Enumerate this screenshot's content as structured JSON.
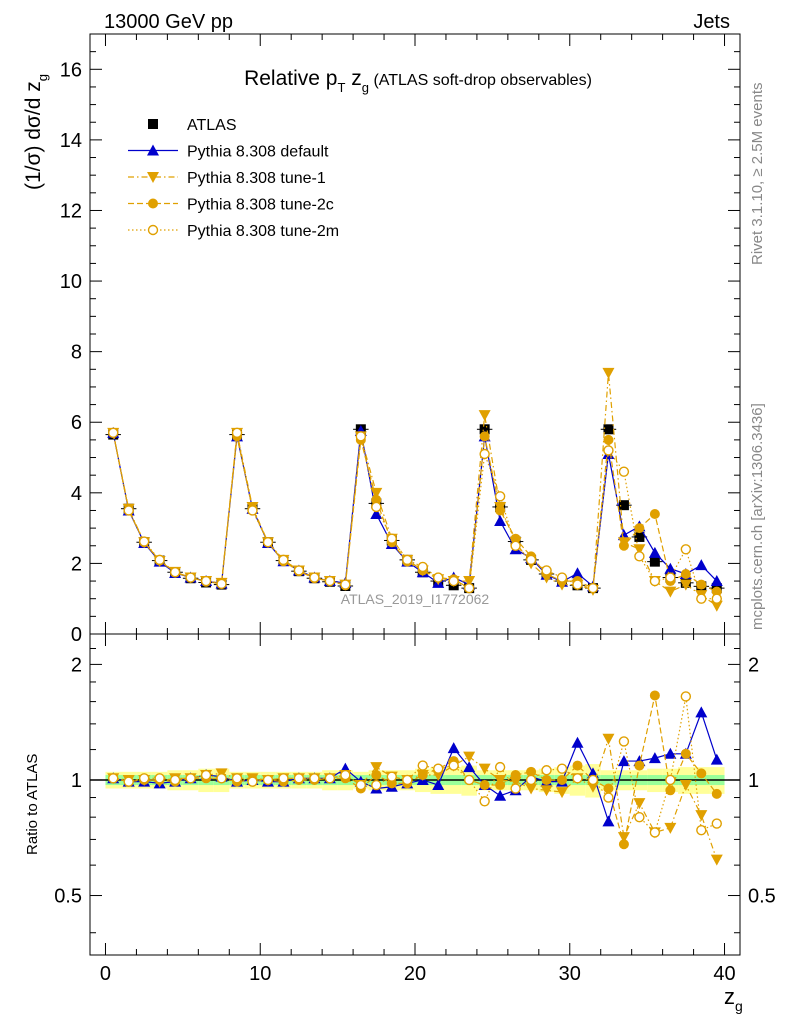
{
  "header": {
    "energy": "13000 GeV pp",
    "process": "Jets"
  },
  "side_labels": {
    "rivet": "Rivet 3.1.10, ≥ 2.5M events",
    "source": "mcplots.cern.ch [arXiv:1306.3436]"
  },
  "watermark": "ATLAS_2019_I1772062",
  "title": {
    "prefix": "Relative p",
    "pt_sub": "T",
    "var": " z",
    "var_sub": "g",
    "suffix": " (ATLAS soft-drop observables)"
  },
  "colors": {
    "atlas": "#000000",
    "default": "#0000cc",
    "tune": "#e0a000",
    "band_inner": "#99ff99",
    "band_outer": "#ffff99"
  },
  "chart_data": [
    {
      "id": "main",
      "type": "scatter",
      "ylabel": "(1/σ) dσ/d z",
      "ylabel_sub": "g",
      "xlim": [
        -1,
        41
      ],
      "ylim": [
        0,
        17
      ],
      "y_ticks": [
        0,
        2,
        4,
        6,
        8,
        10,
        12,
        14,
        16
      ],
      "legend_position": "top-left",
      "x": [
        0.5,
        1.5,
        2.5,
        3.5,
        4.5,
        5.5,
        6.5,
        7.5,
        8.5,
        9.5,
        10.5,
        11.5,
        12.5,
        13.5,
        14.5,
        15.5,
        16.5,
        17.5,
        18.5,
        19.5,
        20.5,
        21.5,
        22.5,
        23.5,
        24.5,
        25.5,
        26.5,
        27.5,
        28.5,
        29.5,
        30.5,
        31.5,
        32.5,
        33.5,
        34.5,
        35.5,
        36.5,
        37.5,
        38.5,
        39.5
      ],
      "series": [
        {
          "name": "ATLAS",
          "key": "atlas",
          "marker": "square",
          "values": [
            5.65,
            3.55,
            2.6,
            2.08,
            1.75,
            1.58,
            1.46,
            1.4,
            5.65,
            3.55,
            2.6,
            2.08,
            1.78,
            1.58,
            1.48,
            1.36,
            5.8,
            3.7,
            2.65,
            2.1,
            1.75,
            1.5,
            1.38,
            1.3,
            5.8,
            3.6,
            2.62,
            2.1,
            1.7,
            1.5,
            1.38,
            1.3,
            5.8,
            3.65,
            2.75,
            2.05,
            1.6,
            1.45,
            1.35,
            1.3
          ]
        },
        {
          "name": "Pythia 8.308 default",
          "key": "default",
          "marker": "triangle-up",
          "values": [
            5.7,
            3.5,
            2.58,
            2.05,
            1.73,
            1.6,
            1.5,
            1.43,
            5.6,
            3.55,
            2.58,
            2.06,
            1.8,
            1.6,
            1.5,
            1.45,
            5.75,
            3.4,
            2.55,
            2.05,
            1.75,
            1.45,
            1.6,
            1.4,
            5.6,
            3.2,
            2.4,
            2.15,
            1.68,
            1.48,
            1.72,
            1.35,
            5.1,
            2.8,
            3.05,
            2.3,
            1.85,
            1.7,
            1.95,
            1.5
          ]
        },
        {
          "name": "Pythia 8.308 tune-1",
          "key": "tune1",
          "marker": "triangle-down",
          "values": [
            5.7,
            3.55,
            2.6,
            2.07,
            1.76,
            1.6,
            1.5,
            1.45,
            5.7,
            3.6,
            2.6,
            2.1,
            1.8,
            1.6,
            1.5,
            1.4,
            5.6,
            4.0,
            2.7,
            2.1,
            1.8,
            1.55,
            1.5,
            1.5,
            6.2,
            3.6,
            2.6,
            2.0,
            1.6,
            1.4,
            1.4,
            1.25,
            7.4,
            2.6,
            2.4,
            1.5,
            1.2,
            1.4,
            1.1,
            0.8
          ]
        },
        {
          "name": "Pythia 8.308 tune-2c",
          "key": "tune2c",
          "marker": "circle",
          "values": [
            5.7,
            3.5,
            2.6,
            2.08,
            1.74,
            1.6,
            1.48,
            1.42,
            5.6,
            3.55,
            2.6,
            2.06,
            1.78,
            1.58,
            1.5,
            1.38,
            5.5,
            3.8,
            2.6,
            2.05,
            1.8,
            1.6,
            1.55,
            1.3,
            5.6,
            3.5,
            2.7,
            2.2,
            1.7,
            1.5,
            1.5,
            1.3,
            5.5,
            2.5,
            3.0,
            3.4,
            1.5,
            1.7,
            1.4,
            1.2
          ]
        },
        {
          "name": "Pythia 8.308 tune-2m",
          "key": "tune2m",
          "marker": "open-circle",
          "values": [
            5.7,
            3.5,
            2.62,
            2.1,
            1.75,
            1.6,
            1.5,
            1.42,
            5.7,
            3.5,
            2.6,
            2.1,
            1.8,
            1.6,
            1.5,
            1.4,
            5.6,
            3.6,
            2.7,
            2.1,
            1.9,
            1.6,
            1.5,
            1.3,
            5.1,
            3.9,
            2.5,
            2.1,
            1.8,
            1.6,
            1.4,
            1.3,
            5.2,
            4.6,
            2.2,
            1.5,
            1.6,
            2.4,
            1.0,
            1.0
          ]
        }
      ]
    },
    {
      "id": "ratio",
      "type": "scatter",
      "ylabel": "Ratio to ATLAS",
      "xlabel": "z",
      "xlabel_sub": "g",
      "log_y": true,
      "xlim": [
        -1,
        41
      ],
      "ylim": [
        0.35,
        2.4
      ],
      "x_ticks": [
        0,
        10,
        20,
        30,
        40
      ],
      "y_ticks": [
        0.5,
        1,
        2
      ],
      "x": [
        0.5,
        1.5,
        2.5,
        3.5,
        4.5,
        5.5,
        6.5,
        7.5,
        8.5,
        9.5,
        10.5,
        11.5,
        12.5,
        13.5,
        14.5,
        15.5,
        16.5,
        17.5,
        18.5,
        19.5,
        20.5,
        21.5,
        22.5,
        23.5,
        24.5,
        25.5,
        26.5,
        27.5,
        28.5,
        29.5,
        30.5,
        31.5,
        32.5,
        33.5,
        34.5,
        35.5,
        36.5,
        37.5,
        38.5,
        39.5
      ],
      "band_inner": [
        0.03,
        0.03,
        0.03,
        0.03,
        0.03,
        0.03,
        0.03,
        0.03,
        0.03,
        0.03,
        0.03,
        0.03,
        0.03,
        0.03,
        0.03,
        0.03,
        0.03,
        0.03,
        0.03,
        0.03,
        0.03,
        0.03,
        0.03,
        0.03,
        0.03,
        0.03,
        0.03,
        0.03,
        0.03,
        0.03,
        0.03,
        0.03,
        0.03,
        0.03,
        0.03,
        0.03,
        0.03,
        0.03,
        0.03,
        0.03
      ],
      "band_outer": [
        0.05,
        0.05,
        0.05,
        0.05,
        0.06,
        0.06,
        0.07,
        0.07,
        0.05,
        0.05,
        0.05,
        0.05,
        0.05,
        0.05,
        0.06,
        0.06,
        0.05,
        0.06,
        0.06,
        0.06,
        0.07,
        0.08,
        0.08,
        0.09,
        0.06,
        0.06,
        0.06,
        0.06,
        0.07,
        0.08,
        0.09,
        0.1,
        0.06,
        0.06,
        0.06,
        0.07,
        0.07,
        0.08,
        0.08,
        0.08
      ],
      "series": [
        {
          "name": "Pythia 8.308 default",
          "key": "default",
          "marker": "triangle-up",
          "values": [
            1.01,
            0.99,
            0.99,
            0.98,
            0.99,
            1.01,
            1.03,
            1.02,
            0.99,
            1.0,
            0.99,
            0.99,
            1.01,
            1.01,
            1.01,
            1.07,
            0.99,
            0.95,
            0.96,
            0.98,
            1.0,
            0.97,
            1.21,
            1.08,
            0.97,
            0.91,
            0.94,
            1.02,
            0.99,
            0.99,
            1.25,
            1.04,
            0.78,
            1.12,
            1.12,
            1.14,
            1.17,
            1.17,
            1.5,
            1.13
          ]
        },
        {
          "name": "Pythia 8.308 tune-1",
          "key": "tune1",
          "marker": "triangle-down",
          "values": [
            1.01,
            1.0,
            1.0,
            0.99,
            1.01,
            1.01,
            1.03,
            1.04,
            1.01,
            1.01,
            1.0,
            1.01,
            1.01,
            1.01,
            1.01,
            1.03,
            0.97,
            1.08,
            1.02,
            1.0,
            1.03,
            1.03,
            1.09,
            1.15,
            1.07,
            1.0,
            0.99,
            0.95,
            0.94,
            0.93,
            1.01,
            0.96,
            1.28,
            0.71,
            0.87,
            0.73,
            0.75,
            0.97,
            0.81,
            0.62
          ]
        },
        {
          "name": "Pythia 8.308 tune-2c",
          "key": "tune2c",
          "marker": "circle",
          "values": [
            1.01,
            0.99,
            1.0,
            1.0,
            0.99,
            1.01,
            1.01,
            1.01,
            0.99,
            1.0,
            1.0,
            0.99,
            1.0,
            1.0,
            1.01,
            1.01,
            0.95,
            1.03,
            0.98,
            0.98,
            1.03,
            1.07,
            1.12,
            1.0,
            0.97,
            0.97,
            1.03,
            1.05,
            1.0,
            1.0,
            1.09,
            1.0,
            0.95,
            0.68,
            1.09,
            1.66,
            0.94,
            1.17,
            1.04,
            0.92
          ]
        },
        {
          "name": "Pythia 8.308 tune-2m",
          "key": "tune2m",
          "marker": "open-circle",
          "values": [
            1.01,
            0.99,
            1.01,
            1.01,
            1.0,
            1.01,
            1.03,
            1.01,
            1.01,
            0.99,
            1.0,
            1.01,
            1.01,
            1.01,
            1.01,
            1.03,
            0.97,
            0.97,
            1.02,
            1.0,
            1.09,
            1.07,
            1.09,
            1.0,
            0.88,
            1.08,
            0.95,
            1.0,
            1.06,
            1.07,
            1.01,
            1.0,
            0.9,
            1.26,
            0.8,
            0.73,
            1.0,
            1.65,
            0.74,
            0.77
          ]
        }
      ]
    }
  ]
}
